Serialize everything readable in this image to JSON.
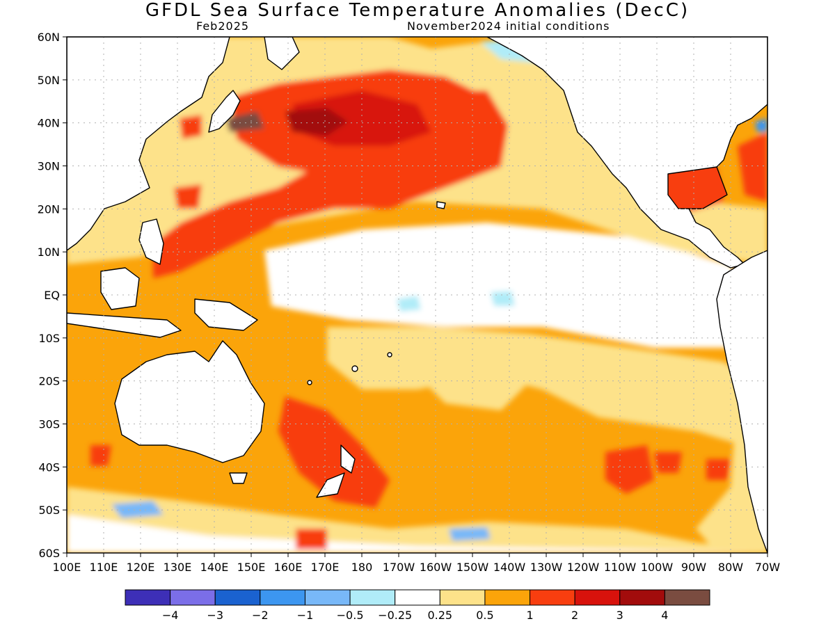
{
  "title": "GFDL Sea Surface Temperature Anomalies (DecC)",
  "subtitle_left": "Feb2025",
  "subtitle_right": "November2024 initial conditions",
  "lat_labels": [
    "60N",
    "50N",
    "40N",
    "30N",
    "20N",
    "10N",
    "EQ",
    "10S",
    "20S",
    "30S",
    "40S",
    "50S",
    "60S"
  ],
  "lon_labels": [
    "100E",
    "110E",
    "120E",
    "130E",
    "140E",
    "150E",
    "160E",
    "170E",
    "180",
    "170W",
    "160W",
    "150W",
    "140W",
    "130W",
    "120W",
    "110W",
    "100W",
    "90W",
    "80W",
    "70W"
  ],
  "colorbar": {
    "colors": [
      "#3d2fb7",
      "#7b6ee8",
      "#1a62d0",
      "#3c96f0",
      "#78b8f8",
      "#b0ecf8",
      "#ffffff",
      "#fde28a",
      "#fba40a",
      "#f83e0f",
      "#d8120c",
      "#a20c0c",
      "#7a4c40"
    ],
    "labels": [
      "-4",
      "-3",
      "-2",
      "-1",
      "-0.5",
      "-0.25",
      "0.25",
      "0.5",
      "1",
      "2",
      "3",
      "4"
    ]
  },
  "legend_colors": {
    "land": "#ffffff",
    "coast": "#000000",
    "grid": "#b0b0b0"
  }
}
